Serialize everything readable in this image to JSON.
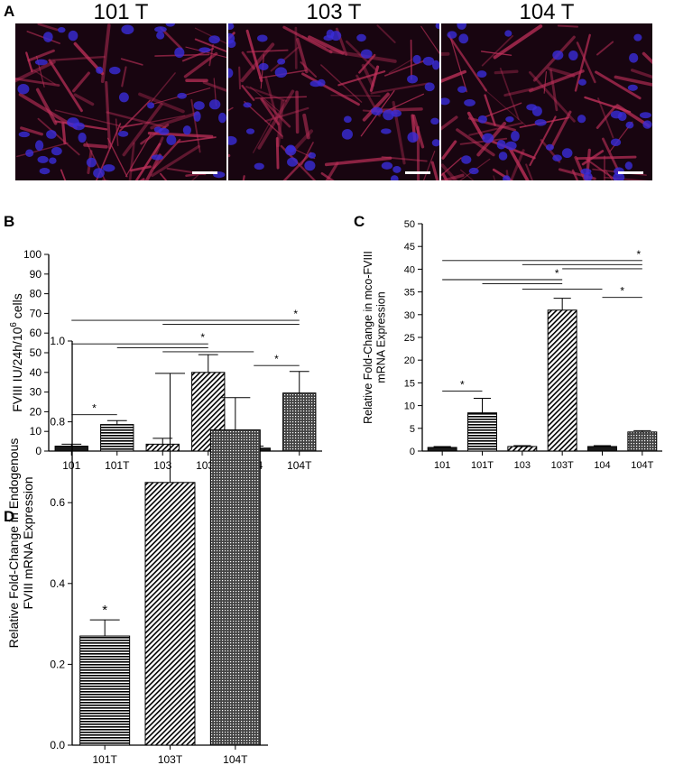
{
  "panelA": {
    "letter": "A",
    "images": [
      {
        "title": "101 T",
        "seed": 3
      },
      {
        "title": "103 T",
        "seed": 7
      },
      {
        "title": "104 T",
        "seed": 11
      }
    ],
    "colors": {
      "bg": "#180510",
      "stain": "#c0305a",
      "nucleus": "#3a2cd8",
      "scalebar": "#ffffff"
    }
  },
  "chart_data": [
    {
      "id": "B",
      "letter": "B",
      "type": "bar",
      "categories": [
        "101",
        "101T",
        "103",
        "103T",
        "104",
        "104T"
      ],
      "values": [
        2.5,
        13.5,
        3.5,
        40,
        1.5,
        29.5
      ],
      "errors": [
        1,
        2,
        3,
        9,
        1,
        11
      ],
      "patterns": [
        "solid",
        "hlines",
        "diag",
        "diag",
        "solid",
        "cross"
      ],
      "ylabel": "FVIII IU/24h/10",
      "ylabel_sup": "6",
      "ylabel_tail": " cells",
      "ylim": [
        0,
        100
      ],
      "yticks": [
        0,
        10,
        20,
        30,
        40,
        50,
        60,
        70,
        80,
        90,
        100
      ],
      "sig_lines": [
        {
          "from": 0,
          "to": 1,
          "y": 18.5,
          "star": true
        },
        {
          "from": 0,
          "to": 3,
          "y": 54.5,
          "star": true
        },
        {
          "from": 1,
          "to": 3,
          "y": 52.5,
          "star": false
        },
        {
          "from": 2,
          "to": 4,
          "y": 50.5,
          "star": false
        },
        {
          "from": 4,
          "to": 5,
          "y": 43.5,
          "star": true
        },
        {
          "from": 0,
          "to": 5,
          "y": 66.5,
          "star": true
        },
        {
          "from": 2,
          "to": 5,
          "y": 64.5,
          "star": false
        }
      ],
      "star_label": "*"
    },
    {
      "id": "C",
      "letter": "C",
      "type": "bar",
      "categories": [
        "101",
        "101T",
        "103",
        "103T",
        "104",
        "104T"
      ],
      "values": [
        0.8,
        8.4,
        1,
        31,
        1,
        4.2
      ],
      "errors": [
        0.2,
        3.2,
        0.2,
        2.6,
        0.2,
        0.3
      ],
      "patterns": [
        "solid",
        "hlines",
        "diag",
        "diag",
        "solid",
        "cross"
      ],
      "ylabel": "Relative Fold-Change in mco-FVIII",
      "ylabel2": "mRNA Expression",
      "ylim": [
        0,
        50
      ],
      "yticks": [
        0,
        5,
        10,
        15,
        20,
        25,
        30,
        35,
        40,
        45,
        50
      ],
      "sig_lines": [
        {
          "from": 0,
          "to": 1,
          "y": 13.2,
          "star": true
        },
        {
          "from": 0,
          "to": 3,
          "y": 37.7,
          "star": true
        },
        {
          "from": 1,
          "to": 3,
          "y": 36.8,
          "star": false
        },
        {
          "from": 2,
          "to": 4,
          "y": 35.6,
          "star": false
        },
        {
          "from": 4,
          "to": 5,
          "y": 33.8,
          "star": true
        },
        {
          "from": 0,
          "to": 5,
          "y": 41.9,
          "star": true
        },
        {
          "from": 2,
          "to": 5,
          "y": 41.0,
          "star": false
        },
        {
          "from": 3,
          "to": 5,
          "y": 40.1,
          "star": false
        }
      ],
      "star_label": "*"
    },
    {
      "id": "D",
      "letter": "D",
      "type": "bar",
      "categories": [
        "101T",
        "103T",
        "104T"
      ],
      "values": [
        0.27,
        0.65,
        0.78
      ],
      "errors": [
        0.04,
        0.27,
        0.08
      ],
      "patterns": [
        "hlines",
        "diag",
        "cross"
      ],
      "ylabel": "Relative Fold-Change in Endogenous",
      "ylabel2": "FVIII mRNA Expression",
      "ylim": [
        0,
        1.0
      ],
      "yticks": [
        "0.0",
        "0.2",
        "0.4",
        "0.6",
        "0.8",
        "1.0"
      ],
      "stars": [
        0
      ],
      "star_label": "*"
    }
  ]
}
